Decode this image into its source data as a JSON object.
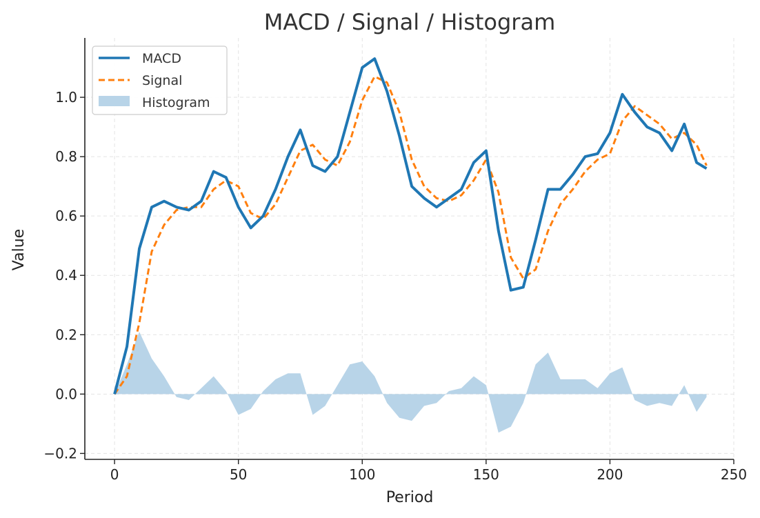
{
  "chart_data": {
    "type": "line",
    "title": "MACD / Signal / Histogram",
    "xlabel": "Period",
    "ylabel": "Value",
    "xlim": [
      -12,
      250
    ],
    "ylim": [
      -0.22,
      1.2
    ],
    "xticks": [
      0,
      50,
      100,
      150,
      200,
      250
    ],
    "yticks": [
      -0.2,
      0.0,
      0.2,
      0.4,
      0.6,
      0.8,
      1.0
    ],
    "xtick_labels": [
      "0",
      "50",
      "100",
      "150",
      "200",
      "250"
    ],
    "ytick_labels": [
      "−0.2",
      "0.0",
      "0.2",
      "0.4",
      "0.6",
      "0.8",
      "1.0"
    ],
    "grid": true,
    "legend_position": "top-left",
    "colors": {
      "macd": "#1f77b4",
      "signal": "#ff7f0e",
      "histogram": "#b8d4e8"
    },
    "x": [
      0,
      5,
      10,
      15,
      20,
      25,
      30,
      35,
      40,
      45,
      50,
      55,
      60,
      65,
      70,
      75,
      80,
      85,
      90,
      95,
      100,
      105,
      110,
      115,
      120,
      125,
      130,
      135,
      140,
      145,
      150,
      155,
      160,
      165,
      170,
      175,
      180,
      185,
      190,
      195,
      200,
      205,
      210,
      215,
      220,
      225,
      230,
      235,
      239
    ],
    "series": [
      {
        "name": "MACD",
        "style": "solid",
        "values": [
          0.0,
          0.16,
          0.49,
          0.63,
          0.65,
          0.63,
          0.62,
          0.65,
          0.75,
          0.73,
          0.63,
          0.56,
          0.6,
          0.69,
          0.8,
          0.89,
          0.77,
          0.75,
          0.8,
          0.95,
          1.1,
          1.13,
          1.02,
          0.87,
          0.7,
          0.66,
          0.63,
          0.66,
          0.69,
          0.78,
          0.82,
          0.55,
          0.35,
          0.36,
          0.52,
          0.69,
          0.69,
          0.74,
          0.8,
          0.81,
          0.88,
          1.01,
          0.95,
          0.9,
          0.88,
          0.82,
          0.91,
          0.78,
          0.76
        ]
      },
      {
        "name": "Signal",
        "style": "dashed",
        "values": [
          0.0,
          0.06,
          0.24,
          0.48,
          0.57,
          0.62,
          0.63,
          0.63,
          0.69,
          0.72,
          0.7,
          0.61,
          0.59,
          0.64,
          0.73,
          0.82,
          0.84,
          0.79,
          0.77,
          0.85,
          0.99,
          1.07,
          1.05,
          0.95,
          0.79,
          0.7,
          0.66,
          0.65,
          0.67,
          0.72,
          0.79,
          0.68,
          0.46,
          0.39,
          0.42,
          0.55,
          0.64,
          0.69,
          0.75,
          0.79,
          0.81,
          0.92,
          0.97,
          0.94,
          0.91,
          0.86,
          0.88,
          0.84,
          0.77
        ]
      },
      {
        "name": "Histogram",
        "style": "area",
        "values": [
          0.0,
          0.1,
          0.21,
          0.12,
          0.06,
          -0.01,
          -0.02,
          0.02,
          0.06,
          0.01,
          -0.07,
          -0.05,
          0.01,
          0.05,
          0.07,
          0.07,
          -0.07,
          -0.04,
          0.03,
          0.1,
          0.11,
          0.06,
          -0.03,
          -0.08,
          -0.09,
          -0.04,
          -0.03,
          0.01,
          0.02,
          0.06,
          0.03,
          -0.13,
          -0.11,
          -0.03,
          0.1,
          0.14,
          0.05,
          0.05,
          0.05,
          0.02,
          0.07,
          0.09,
          -0.02,
          -0.04,
          -0.03,
          -0.04,
          0.03,
          -0.06,
          -0.01
        ]
      }
    ]
  }
}
